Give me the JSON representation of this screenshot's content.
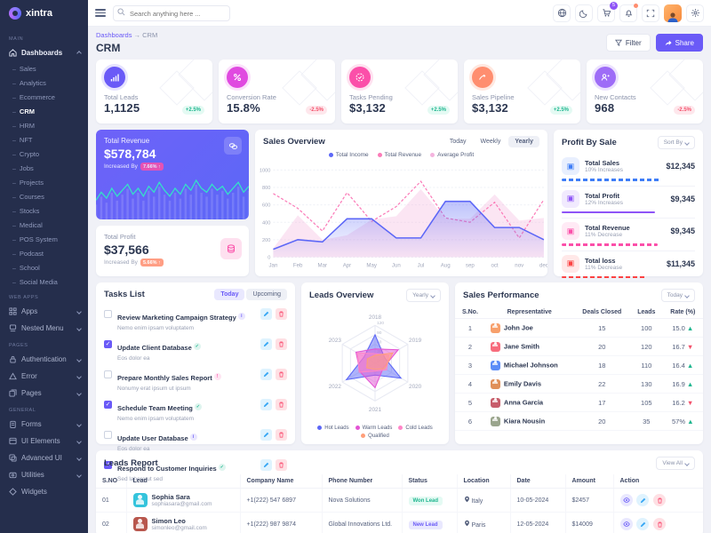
{
  "brand": {
    "name": "xintra"
  },
  "topbar": {
    "search_placeholder": "Search anything here ...",
    "cart_count": "5"
  },
  "page": {
    "breadcrumb_parent": "Dashboards",
    "breadcrumb_sep": "→",
    "breadcrumb_current": "CRM",
    "title": "CRM",
    "filter_label": "Filter",
    "share_label": "Share"
  },
  "sidebar": {
    "sections": [
      {
        "label": "MAIN"
      },
      {
        "label": "WEB APPS"
      },
      {
        "label": "PAGES"
      },
      {
        "label": "GENERAL"
      }
    ],
    "dashboards_label": "Dashboards",
    "dashboard_children": [
      "Sales",
      "Analytics",
      "Ecommerce",
      "CRM",
      "HRM",
      "NFT",
      "Crypto",
      "Jobs",
      "Projects",
      "Courses",
      "Stocks",
      "Medical",
      "POS System",
      "Podcast",
      "School",
      "Social Media"
    ],
    "active_child": "CRM",
    "webapps_items": [
      "Apps",
      "Nested Menu"
    ],
    "pages_items": [
      "Authentication",
      "Error",
      "Pages"
    ],
    "general_items": [
      "Forms",
      "UI Elements",
      "Advanced UI",
      "Utilities",
      "Widgets"
    ]
  },
  "stats": [
    {
      "label": "Total Leads",
      "value": "1,1125",
      "delta": "+2.5%",
      "trend": "up",
      "color": "#6a5af7",
      "halo": "#e6e3fe"
    },
    {
      "label": "Conversion Rate",
      "value": "15.8%",
      "delta": "-2.5%",
      "trend": "down",
      "color": "#e04ae0",
      "halo": "#fbe2fb"
    },
    {
      "label": "Tasks Pending",
      "value": "$3,132",
      "delta": "+2.5%",
      "trend": "up",
      "color": "#fb4fa9",
      "halo": "#fee2f0"
    },
    {
      "label": "Sales Pipeline",
      "value": "$3,132",
      "delta": "+2.5%",
      "trend": "up",
      "color": "#ff8e6f",
      "halo": "#ffe8e0"
    },
    {
      "label": "New Contacts",
      "value": "968",
      "delta": "-2.5%",
      "trend": "down",
      "color": "#9e6cf7",
      "halo": "#ece2fe"
    }
  ],
  "revenue_card": {
    "label": "Total Revenue",
    "value": "$578,784",
    "sub": "Increased By",
    "badge": "7.66% ↑"
  },
  "profit_card": {
    "label": "Total Profit",
    "value": "$37,566",
    "sub": "Increased By",
    "badge": "5.66% ↑"
  },
  "sales_overview": {
    "title": "Sales Overview",
    "tabs": [
      "Today",
      "Weekly",
      "Yearly"
    ],
    "active_tab": "Yearly"
  },
  "profit_by_sale": {
    "title": "Profit By Sale",
    "sort_label": "Sort By",
    "items": [
      {
        "label": "Total Sales",
        "sub": "10% Increases",
        "value": "$12,345",
        "color": "#3e7df7",
        "pct": 74,
        "solid": false,
        "glyph": "▣"
      },
      {
        "label": "Total Profit",
        "sub": "12% Increases",
        "value": "$9,345",
        "color": "#8e54f7",
        "pct": 70,
        "solid": true,
        "glyph": "▣"
      },
      {
        "label": "Total Revenue",
        "sub": "11% Decrease",
        "value": "$9,345",
        "color": "#fb4fa9",
        "pct": 72,
        "solid": false,
        "glyph": "▣"
      },
      {
        "label": "Total loss",
        "sub": "11% Decrease",
        "value": "$11,345",
        "color": "#fb4242",
        "pct": 63,
        "solid": false,
        "glyph": "▣"
      }
    ]
  },
  "tasks": {
    "title": "Tasks List",
    "tab_today": "Today",
    "tab_upcoming": "Upcoming",
    "items": [
      {
        "done": false,
        "title": "Review Marketing Campaign Strategy",
        "sub": "Nemo enim ipsam voluptatem",
        "tag": "#6a5af7",
        "tag_glyph": "i"
      },
      {
        "done": true,
        "title": "Update Client Database",
        "sub": "Eos dolor ea",
        "tag": "#1fb68f",
        "tag_glyph": "✓"
      },
      {
        "done": false,
        "title": "Prepare Monthly Sales Report",
        "sub": "Nonumy erat ipsum ut ipsum",
        "tag": "#fb4fa9",
        "tag_glyph": "!"
      },
      {
        "done": true,
        "title": "Schedule Team Meeting",
        "sub": "Nemo enim ipsam voluptatem",
        "tag": "#1fb68f",
        "tag_glyph": "✓"
      },
      {
        "done": false,
        "title": "Update User Database",
        "sub": "Eos dolor ea",
        "tag": "#6a5af7",
        "tag_glyph": "i"
      },
      {
        "done": true,
        "title": "Respond to Customer Inquiries",
        "sub": "Sed labore ut sed",
        "tag": "#1fb68f",
        "tag_glyph": "✓"
      }
    ]
  },
  "leads_overview": {
    "title": "Leads Overview",
    "range_label": "Yearly"
  },
  "sales_performance": {
    "title": "Sales Performance",
    "range_label": "Today",
    "columns": [
      "S.No.",
      "Representative",
      "Deals Closed",
      "Leads",
      "Rate (%)"
    ],
    "rows": [
      {
        "no": "1",
        "rep": "John Joe",
        "deals": "15",
        "leads": "100",
        "rate": "15.0",
        "trend": "up",
        "avatar": "#f7a06c"
      },
      {
        "no": "2",
        "rep": "Jane Smith",
        "deals": "20",
        "leads": "120",
        "rate": "16.7",
        "trend": "down",
        "avatar": "#f76c7d"
      },
      {
        "no": "3",
        "rep": "Michael Johnson",
        "deals": "18",
        "leads": "110",
        "rate": "16.4",
        "trend": "up",
        "avatar": "#5c8df7"
      },
      {
        "no": "4",
        "rep": "Emily Davis",
        "deals": "22",
        "leads": "130",
        "rate": "16.9",
        "trend": "up",
        "avatar": "#e0905a"
      },
      {
        "no": "5",
        "rep": "Anna Garcia",
        "deals": "17",
        "leads": "105",
        "rate": "16.2",
        "trend": "down",
        "avatar": "#c75d6b"
      },
      {
        "no": "6",
        "rep": "Kiara Nousin",
        "deals": "20",
        "leads": "35",
        "rate": "57%",
        "trend": "up",
        "avatar": "#9aa58d"
      }
    ]
  },
  "leads_report": {
    "title": "Leads Report",
    "view_all_label": "View All",
    "columns": [
      "S.NO",
      "Lead",
      "Company Name",
      "Phone Number",
      "Status",
      "Location",
      "Date",
      "Amount",
      "Action"
    ],
    "rows": [
      {
        "no": "01",
        "name": "Sophia Sara",
        "email": "sophiasara@gmail.com",
        "phone": "+1(222) 547 6897",
        "company": "Nova Solutions",
        "status": "Won Lead",
        "status_type": "won",
        "location": "Italy",
        "date": "10-05-2024",
        "amount": "$2457",
        "avatar": "#35c4dc"
      },
      {
        "no": "02",
        "name": "Simon Leo",
        "email": "simonleo@gmail.com",
        "phone": "+1(222) 987 9874",
        "company": "Global Innovations Ltd.",
        "status": "New Lead",
        "status_type": "new",
        "location": "Paris",
        "date": "12-05-2024",
        "amount": "$14009",
        "avatar": "#b8574d"
      }
    ]
  },
  "chart_data": [
    {
      "type": "line",
      "title": "Sales Overview",
      "legend_position": "top",
      "categories": [
        "Jan",
        "Feb",
        "Mar",
        "Apr",
        "May",
        "Jun",
        "Jul",
        "Aug",
        "sep",
        "oct",
        "nov",
        "dec"
      ],
      "ylim": [
        0,
        1000
      ],
      "yticks": [
        0,
        200,
        400,
        600,
        800,
        1000
      ],
      "series": [
        {
          "name": "Total Income",
          "color": "#5c67f7",
          "style": "solid-area",
          "values": [
            90,
            200,
            175,
            440,
            440,
            220,
            220,
            640,
            640,
            340,
            340,
            200
          ]
        },
        {
          "name": "Total Revenue",
          "color": "#fb7bb8",
          "style": "dashed",
          "values": [
            730,
            560,
            300,
            740,
            410,
            580,
            870,
            450,
            400,
            630,
            220,
            660
          ]
        },
        {
          "name": "Average Profit",
          "color": "#f4b4de",
          "style": "area",
          "values": [
            100,
            480,
            200,
            250,
            430,
            470,
            780,
            440,
            440,
            720,
            420,
            450
          ]
        }
      ]
    },
    {
      "type": "radar",
      "title": "Leads Overview",
      "categories": [
        "2018",
        "2019",
        "2020",
        "2021",
        "2022",
        "2023"
      ],
      "max": 120,
      "ticks": [
        0,
        30,
        60,
        90,
        120
      ],
      "series": [
        {
          "name": "Hot Leads",
          "color": "#5c67f7",
          "values": [
            90,
            35,
            95,
            38,
            105,
            40
          ]
        },
        {
          "name": "Warm Leads",
          "color": "#e354d4",
          "values": [
            45,
            85,
            30,
            78,
            55,
            70
          ]
        },
        {
          "name": "Cold Leads",
          "color": "#ff86c8",
          "values": [
            30,
            50,
            42,
            25,
            58,
            65
          ]
        },
        {
          "name": "Qualified",
          "color": "#ff9f7a",
          "values": [
            25,
            65,
            35,
            20,
            30,
            28
          ]
        }
      ]
    },
    {
      "type": "line",
      "title": "Total Revenue sparkline",
      "values": [
        14,
        22,
        16,
        26,
        18,
        24,
        30,
        20,
        26,
        18,
        28,
        22,
        32,
        24,
        18,
        26,
        20,
        30,
        24,
        34,
        26,
        22,
        30,
        24,
        28,
        20,
        26,
        32,
        22,
        28
      ]
    }
  ]
}
